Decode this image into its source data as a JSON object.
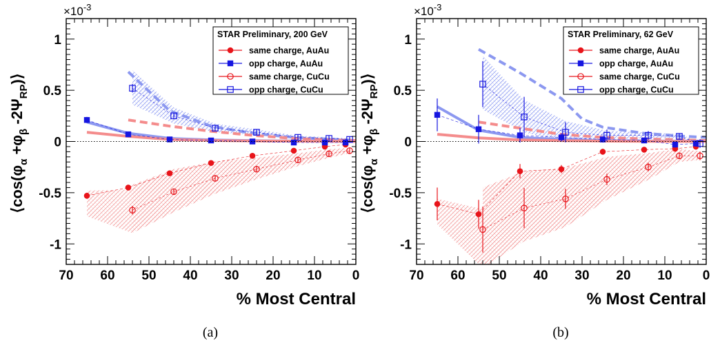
{
  "chart_data": [
    {
      "type": "scatter",
      "panel_caption": "(a)",
      "ylabel": "⟨cos(φα+φβ-2ΨRP)⟩",
      "ylabel_parts": {
        "open": "⟨cos(φ",
        "a": "α",
        "plus": " +φ",
        "b": "β",
        "mid": " -2Ψ",
        "rp": "RP",
        "close": ")⟩"
      },
      "y_multiplier": "×10",
      "y_multiplier_exp": "-3",
      "xlabel": "% Most Central",
      "xlim": [
        70,
        0
      ],
      "ylim": [
        -1.2,
        1.2
      ],
      "x_ticks": [
        "70",
        "60",
        "50",
        "40",
        "30",
        "20",
        "10",
        "0"
      ],
      "y_ticks": [
        "-1",
        "-0.5",
        "0",
        "0.5",
        "1"
      ],
      "legend_title": "STAR Preliminary,  200 GeV",
      "legend_position": "top-right",
      "series": [
        {
          "name": "same charge, AuAu",
          "color": "#e8141a",
          "marker": "filled-circle",
          "x": [
            65,
            55,
            45,
            35,
            25,
            15,
            7.5,
            2.5
          ],
          "y": [
            -0.53,
            -0.45,
            -0.31,
            -0.21,
            -0.14,
            -0.09,
            -0.05,
            -0.03
          ]
        },
        {
          "name": "opp charge, AuAu",
          "color": "#1515e0",
          "marker": "filled-square",
          "x": [
            65,
            55,
            45,
            35,
            25,
            15,
            7.5,
            2.5
          ],
          "y": [
            0.21,
            0.07,
            0.02,
            0.01,
            0.0,
            -0.01,
            -0.01,
            -0.01
          ]
        },
        {
          "name": "same charge, CuCu",
          "color": "#e8141a",
          "marker": "open-circle",
          "x": [
            54,
            44,
            34,
            24,
            14,
            6.5,
            1.5
          ],
          "y": [
            -0.67,
            -0.49,
            -0.36,
            -0.27,
            -0.18,
            -0.12,
            -0.09
          ]
        },
        {
          "name": "opp charge, CuCu",
          "color": "#1515e0",
          "marker": "open-square",
          "x": [
            54,
            44,
            34,
            24,
            14,
            6.5,
            1.5
          ],
          "y": [
            0.52,
            0.25,
            0.13,
            0.09,
            0.04,
            0.03,
            0.02
          ]
        }
      ]
    },
    {
      "type": "scatter",
      "panel_caption": "(b)",
      "ylabel": "⟨cos(φα+φβ-2ΨRP)⟩",
      "ylabel_parts": {
        "open": "⟨cos(φ",
        "a": "α",
        "plus": " +φ",
        "b": "β",
        "mid": " -2Ψ",
        "rp": "RP",
        "close": ")⟩"
      },
      "y_multiplier": "×10",
      "y_multiplier_exp": "-3",
      "xlabel": "% Most Central",
      "xlim": [
        70,
        0
      ],
      "ylim": [
        -1.2,
        1.2
      ],
      "x_ticks": [
        "70",
        "60",
        "50",
        "40",
        "30",
        "20",
        "10",
        "0"
      ],
      "y_ticks": [
        "-1",
        "-0.5",
        "0",
        "0.5",
        "1"
      ],
      "legend_title": "STAR Preliminary,  62 GeV",
      "legend_position": "top-right",
      "series": [
        {
          "name": "same charge, AuAu",
          "color": "#e8141a",
          "marker": "filled-circle",
          "x": [
            65,
            55,
            45,
            35,
            25,
            15,
            7.5,
            2.5
          ],
          "y": [
            -0.61,
            -0.71,
            -0.29,
            -0.27,
            -0.1,
            -0.08,
            -0.07,
            -0.05
          ]
        },
        {
          "name": "opp charge, AuAu",
          "color": "#1515e0",
          "marker": "filled-square",
          "x": [
            65,
            55,
            45,
            35,
            25,
            15,
            7.5,
            2.5
          ],
          "y": [
            0.26,
            0.12,
            0.06,
            0.04,
            0.02,
            0.01,
            -0.03,
            -0.02
          ]
        },
        {
          "name": "same charge, CuCu",
          "color": "#e8141a",
          "marker": "open-circle",
          "x": [
            54,
            44,
            34,
            24,
            14,
            6.5,
            1.5
          ],
          "y": [
            -0.86,
            -0.65,
            -0.56,
            -0.37,
            -0.25,
            -0.14,
            -0.14
          ]
        },
        {
          "name": "opp charge, CuCu",
          "color": "#1515e0",
          "marker": "open-square",
          "x": [
            54,
            44,
            34,
            24,
            14,
            6.5,
            1.5
          ],
          "y": [
            0.56,
            0.24,
            0.09,
            0.06,
            0.06,
            0.05,
            -0.02
          ]
        }
      ]
    }
  ],
  "colors": {
    "red_band": "#f4a0a0",
    "blue_band": "#a0a8f0",
    "red_curve": "#f48c8c",
    "blue_curve": "#8c98f0"
  }
}
